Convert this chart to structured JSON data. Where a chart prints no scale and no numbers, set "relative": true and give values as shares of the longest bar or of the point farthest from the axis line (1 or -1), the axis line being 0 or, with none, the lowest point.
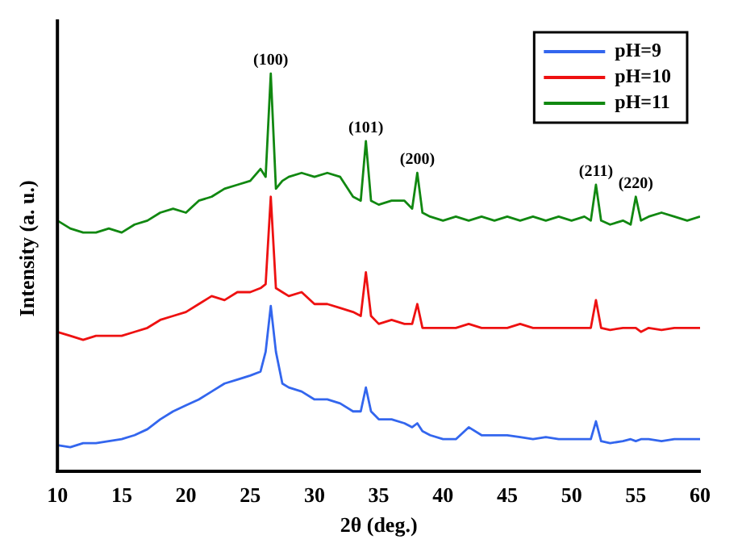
{
  "chart_data": {
    "type": "line",
    "xlabel": "2θ (deg.)",
    "ylabel": "Intensity (a. u.)",
    "relative": true,
    "grid": false,
    "legend": "top right",
    "marker": "none",
    "line_style": "solid",
    "xlim": [
      10,
      60
    ],
    "xticks": [
      10,
      15,
      20,
      25,
      30,
      35,
      40,
      45,
      50,
      55,
      60
    ],
    "x": [
      10,
      11,
      12,
      13,
      14,
      15,
      16,
      17,
      18,
      19,
      20,
      21,
      22,
      23,
      24,
      25,
      25.8,
      26.2,
      26.6,
      27.0,
      27.5,
      28,
      29,
      30,
      31,
      32,
      33,
      33.6,
      34.0,
      34.4,
      35,
      36,
      37,
      37.6,
      38.0,
      38.4,
      39,
      40,
      41,
      42,
      43,
      44,
      45,
      46,
      47,
      48,
      49,
      50,
      51,
      51.5,
      51.9,
      52.3,
      53,
      54,
      54.6,
      55.0,
      55.4,
      56,
      57,
      58,
      59,
      60
    ],
    "series": [
      {
        "name": "pH=9",
        "color": "#3366ee",
        "values": [
          0.065,
          0.06,
          0.07,
          0.07,
          0.075,
          0.08,
          0.09,
          0.105,
          0.13,
          0.15,
          0.165,
          0.18,
          0.2,
          0.22,
          0.23,
          0.24,
          0.25,
          0.3,
          0.415,
          0.3,
          0.22,
          0.21,
          0.2,
          0.18,
          0.18,
          0.17,
          0.15,
          0.15,
          0.21,
          0.15,
          0.13,
          0.13,
          0.12,
          0.11,
          0.12,
          0.1,
          0.09,
          0.08,
          0.08,
          0.11,
          0.09,
          0.09,
          0.09,
          0.085,
          0.08,
          0.085,
          0.08,
          0.08,
          0.08,
          0.08,
          0.125,
          0.075,
          0.07,
          0.075,
          0.08,
          0.075,
          0.08,
          0.08,
          0.075,
          0.08,
          0.08,
          0.08
        ]
      },
      {
        "name": "pH=10",
        "color": "#ee1111",
        "values": [
          0.35,
          0.34,
          0.33,
          0.34,
          0.34,
          0.34,
          0.35,
          0.36,
          0.38,
          0.39,
          0.4,
          0.42,
          0.44,
          0.43,
          0.45,
          0.45,
          0.46,
          0.47,
          0.69,
          0.46,
          0.45,
          0.44,
          0.45,
          0.42,
          0.42,
          0.41,
          0.4,
          0.39,
          0.5,
          0.39,
          0.37,
          0.38,
          0.37,
          0.37,
          0.42,
          0.36,
          0.36,
          0.36,
          0.36,
          0.37,
          0.36,
          0.36,
          0.36,
          0.37,
          0.36,
          0.36,
          0.36,
          0.36,
          0.36,
          0.36,
          0.43,
          0.36,
          0.355,
          0.36,
          0.36,
          0.36,
          0.35,
          0.36,
          0.355,
          0.36,
          0.36,
          0.36
        ]
      },
      {
        "name": "pH=11",
        "color": "#118811",
        "values": [
          0.63,
          0.61,
          0.6,
          0.6,
          0.61,
          0.6,
          0.62,
          0.63,
          0.65,
          0.66,
          0.65,
          0.68,
          0.69,
          0.71,
          0.72,
          0.73,
          0.76,
          0.74,
          1.0,
          0.71,
          0.73,
          0.74,
          0.75,
          0.74,
          0.75,
          0.74,
          0.69,
          0.68,
          0.83,
          0.68,
          0.67,
          0.68,
          0.68,
          0.66,
          0.75,
          0.65,
          0.64,
          0.63,
          0.64,
          0.63,
          0.64,
          0.63,
          0.64,
          0.63,
          0.64,
          0.63,
          0.64,
          0.63,
          0.64,
          0.63,
          0.72,
          0.63,
          0.62,
          0.63,
          0.62,
          0.69,
          0.63,
          0.64,
          0.65,
          0.64,
          0.63,
          0.64
        ]
      }
    ],
    "annotations": [
      {
        "text": "(100)",
        "x": 26.6,
        "y": 1.0
      },
      {
        "text": "(101)",
        "x": 34.0,
        "y": 0.83
      },
      {
        "text": "(200)",
        "x": 38.0,
        "y": 0.75
      },
      {
        "text": "(211)",
        "x": 51.9,
        "y": 0.72
      },
      {
        "text": "(220)",
        "x": 55.0,
        "y": 0.69
      }
    ]
  }
}
